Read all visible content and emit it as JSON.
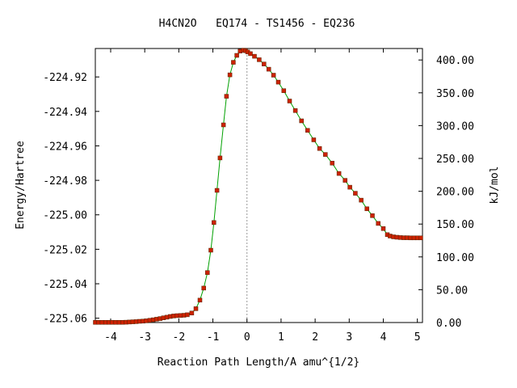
{
  "chart_data": {
    "type": "line",
    "title": "H4CN2O   EQ174 - TS1456 - EQ236",
    "xlabel": "Reaction Path Length/A amu^{1/2}",
    "ylabel": "Energy/Hartree",
    "y2label": "kJ/mol",
    "xlim": [
      -4.45,
      5.15
    ],
    "ylim": [
      -225.0625,
      -224.9035
    ],
    "y2lim": [
      0,
      417.5
    ],
    "x_ticks": [
      -4,
      -3,
      -2,
      -1,
      0,
      1,
      2,
      3,
      4,
      5
    ],
    "x_tick_labels": [
      "-4",
      "-3",
      "-2",
      "-1",
      "0",
      "1",
      "2",
      "3",
      "4",
      "5"
    ],
    "y_ticks": [
      -224.92,
      -224.94,
      -224.96,
      -224.98,
      -225.0,
      -225.02,
      -225.04,
      -225.06
    ],
    "y_tick_labels": [
      "-224.92",
      "-224.94",
      "-224.96",
      "-224.98",
      "-225.00",
      "-225.02",
      "-225.04",
      "-225.06"
    ],
    "y2_ticks": [
      0,
      50,
      100,
      150,
      200,
      250,
      300,
      350,
      400
    ],
    "y2_tick_labels": [
      "0.00",
      "50.00",
      "100.00",
      "150.00",
      "200.00",
      "250.00",
      "300.00",
      "350.00",
      "400.00"
    ],
    "ts_x": 0.0,
    "line_color": "#00a000",
    "marker_color": "#cc2200",
    "ts_line_color": "#999999",
    "grid": false,
    "series": [
      {
        "x": [
          -4.45,
          -4.35,
          -4.25,
          -4.15,
          -4.05,
          -3.95,
          -3.85,
          -3.75,
          -3.65,
          -3.55,
          -3.45,
          -3.35,
          -3.25,
          -3.15,
          -3.05,
          -2.95,
          -2.85,
          -2.75,
          -2.65,
          -2.55,
          -2.45,
          -2.35,
          -2.25,
          -2.15,
          -2.05,
          -1.95,
          -1.85,
          -1.75,
          -1.62,
          -1.5,
          -1.38,
          -1.27,
          -1.16,
          -1.06,
          -0.97,
          -0.88,
          -0.79,
          -0.69,
          -0.6,
          -0.5,
          -0.4,
          -0.3,
          -0.2,
          -0.1,
          -0.04,
          0.02,
          0.1,
          0.22,
          0.36,
          0.5,
          0.64,
          0.78,
          0.92,
          1.08,
          1.25,
          1.42,
          1.6,
          1.78,
          1.96,
          2.13,
          2.3,
          2.5,
          2.7,
          2.88,
          3.02,
          3.18,
          3.35,
          3.52,
          3.68,
          3.85,
          4.0,
          4.12,
          4.2,
          4.3,
          4.4,
          4.5,
          4.6,
          4.7,
          4.8,
          4.9,
          5.0,
          5.1
        ],
        "y": [
          -225.0624,
          -225.0624,
          -225.0624,
          -225.0624,
          -225.0624,
          -225.0624,
          -225.0624,
          -225.0624,
          -225.0624,
          -225.0623,
          -225.0622,
          -225.0621,
          -225.062,
          -225.0618,
          -225.0617,
          -225.0615,
          -225.0612,
          -225.0609,
          -225.0606,
          -225.0602,
          -225.0598,
          -225.0594,
          -225.059,
          -225.0587,
          -225.0585,
          -225.0584,
          -225.0583,
          -225.058,
          -225.057,
          -225.0545,
          -225.0495,
          -225.0425,
          -225.0335,
          -225.0205,
          -225.0045,
          -224.9858,
          -224.967,
          -224.9478,
          -224.9312,
          -224.9188,
          -224.9115,
          -224.9075,
          -224.905,
          -224.9045,
          -224.9048,
          -224.9055,
          -224.9065,
          -224.908,
          -224.91,
          -224.9125,
          -224.9155,
          -224.919,
          -224.923,
          -224.928,
          -224.934,
          -224.9395,
          -224.9455,
          -224.951,
          -224.9565,
          -224.9615,
          -224.965,
          -224.97,
          -224.976,
          -224.98,
          -224.984,
          -224.9875,
          -224.9915,
          -224.9965,
          -225.0005,
          -225.005,
          -225.008,
          -225.0115,
          -225.0123,
          -225.0128,
          -225.013,
          -225.0132,
          -225.0133,
          -225.0133,
          -225.0134,
          -225.0134,
          -225.0134,
          -225.0134
        ]
      }
    ]
  }
}
